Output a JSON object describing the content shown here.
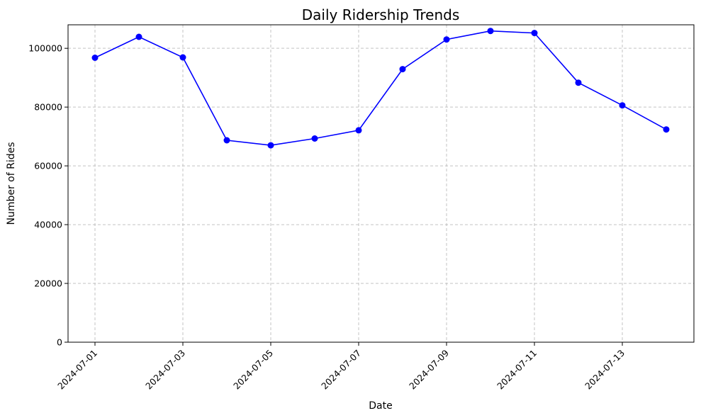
{
  "chart_data": {
    "type": "line",
    "title": "Daily Ridership Trends",
    "xlabel": "Date",
    "ylabel": "Number of Rides",
    "x": [
      "2024-07-01",
      "2024-07-02",
      "2024-07-03",
      "2024-07-04",
      "2024-07-05",
      "2024-07-06",
      "2024-07-07",
      "2024-07-08",
      "2024-07-09",
      "2024-07-10",
      "2024-07-11",
      "2024-07-12",
      "2024-07-13",
      "2024-07-14"
    ],
    "x_tick_labels": [
      "2024-07-01",
      "2024-07-03",
      "2024-07-05",
      "2024-07-07",
      "2024-07-09",
      "2024-07-11",
      "2024-07-13"
    ],
    "y_tick_labels": [
      "0",
      "20000",
      "40000",
      "60000",
      "80000",
      "100000"
    ],
    "ylim": [
      0,
      108000
    ],
    "grid": true,
    "series": [
      {
        "color": "#0000ff",
        "marker": "circle",
        "values": [
          96800,
          103900,
          96900,
          68700,
          67000,
          69300,
          72100,
          92900,
          103000,
          105900,
          105200,
          88300,
          80600,
          72400
        ]
      }
    ]
  }
}
